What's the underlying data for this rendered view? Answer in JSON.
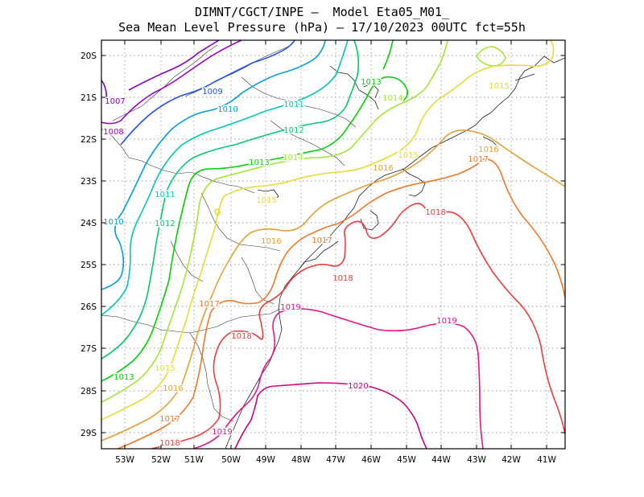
{
  "title_line1": "DIMNT/CGCT/INPE –  Model Eta05_M01_",
  "title_line2": "Sea Mean Level Pressure (hPa) – 17/10/2023 00UTC fct=55h",
  "x_ticks": [
    "53W",
    "52W",
    "51W",
    "50W",
    "49W",
    "48W",
    "47W",
    "46W",
    "45W",
    "44W",
    "43W",
    "42W",
    "41W"
  ],
  "y_ticks": [
    "20S",
    "21S",
    "22S",
    "23S",
    "24S",
    "25S",
    "26S",
    "27S",
    "28S",
    "29S"
  ],
  "contour_colors": {
    "1007": "#8800c8",
    "1008": "#a000c8",
    "1009": "#2050ee",
    "1010": "#00a0e0",
    "1011": "#00c8b4",
    "1012": "#00c86e",
    "1013": "#00d000",
    "1014": "#a0e632",
    "1015": "#e6dc32",
    "1016": "#e6a032",
    "1017": "#f07828",
    "1018": "#f03c3c",
    "1019": "#e6148c",
    "1020": "#d00080"
  },
  "contour_labels": [
    {
      "text": "1007",
      "level": "1007"
    },
    {
      "text": "1008",
      "level": "1008"
    },
    {
      "text": "1009",
      "level": "1009"
    },
    {
      "text": "1010",
      "level": "1010"
    },
    {
      "text": "1010",
      "level": "1010"
    },
    {
      "text": "1011",
      "level": "1011"
    },
    {
      "text": "1011",
      "level": "1011"
    },
    {
      "text": "1012",
      "level": "1012"
    },
    {
      "text": "1012",
      "level": "1012"
    },
    {
      "text": "1013",
      "level": "1013"
    },
    {
      "text": "1013",
      "level": "1013"
    },
    {
      "text": "1013",
      "level": "1013"
    },
    {
      "text": "1014",
      "level": "1014"
    },
    {
      "text": "1014",
      "level": "1014"
    },
    {
      "text": "1015",
      "level": "1015"
    },
    {
      "text": "1015",
      "level": "1015"
    },
    {
      "text": "1015",
      "level": "1015"
    },
    {
      "text": "1015",
      "level": "1015"
    },
    {
      "text": "1016",
      "level": "1016"
    },
    {
      "text": "1016",
      "level": "1016"
    },
    {
      "text": "1016",
      "level": "1016"
    },
    {
      "text": "1016",
      "level": "1016"
    },
    {
      "text": "1017",
      "level": "1017"
    },
    {
      "text": "1017",
      "level": "1017"
    },
    {
      "text": "1017",
      "level": "1017"
    },
    {
      "text": "1017",
      "level": "1017"
    },
    {
      "text": "1018",
      "level": "1018"
    },
    {
      "text": "1018",
      "level": "1018"
    },
    {
      "text": "1018",
      "level": "1018"
    },
    {
      "text": "1018",
      "level": "1018"
    },
    {
      "text": "1019",
      "level": "1019"
    },
    {
      "text": "1019",
      "level": "1019"
    },
    {
      "text": "1019",
      "level": "1019"
    },
    {
      "text": "1020",
      "level": "1020"
    }
  ]
}
